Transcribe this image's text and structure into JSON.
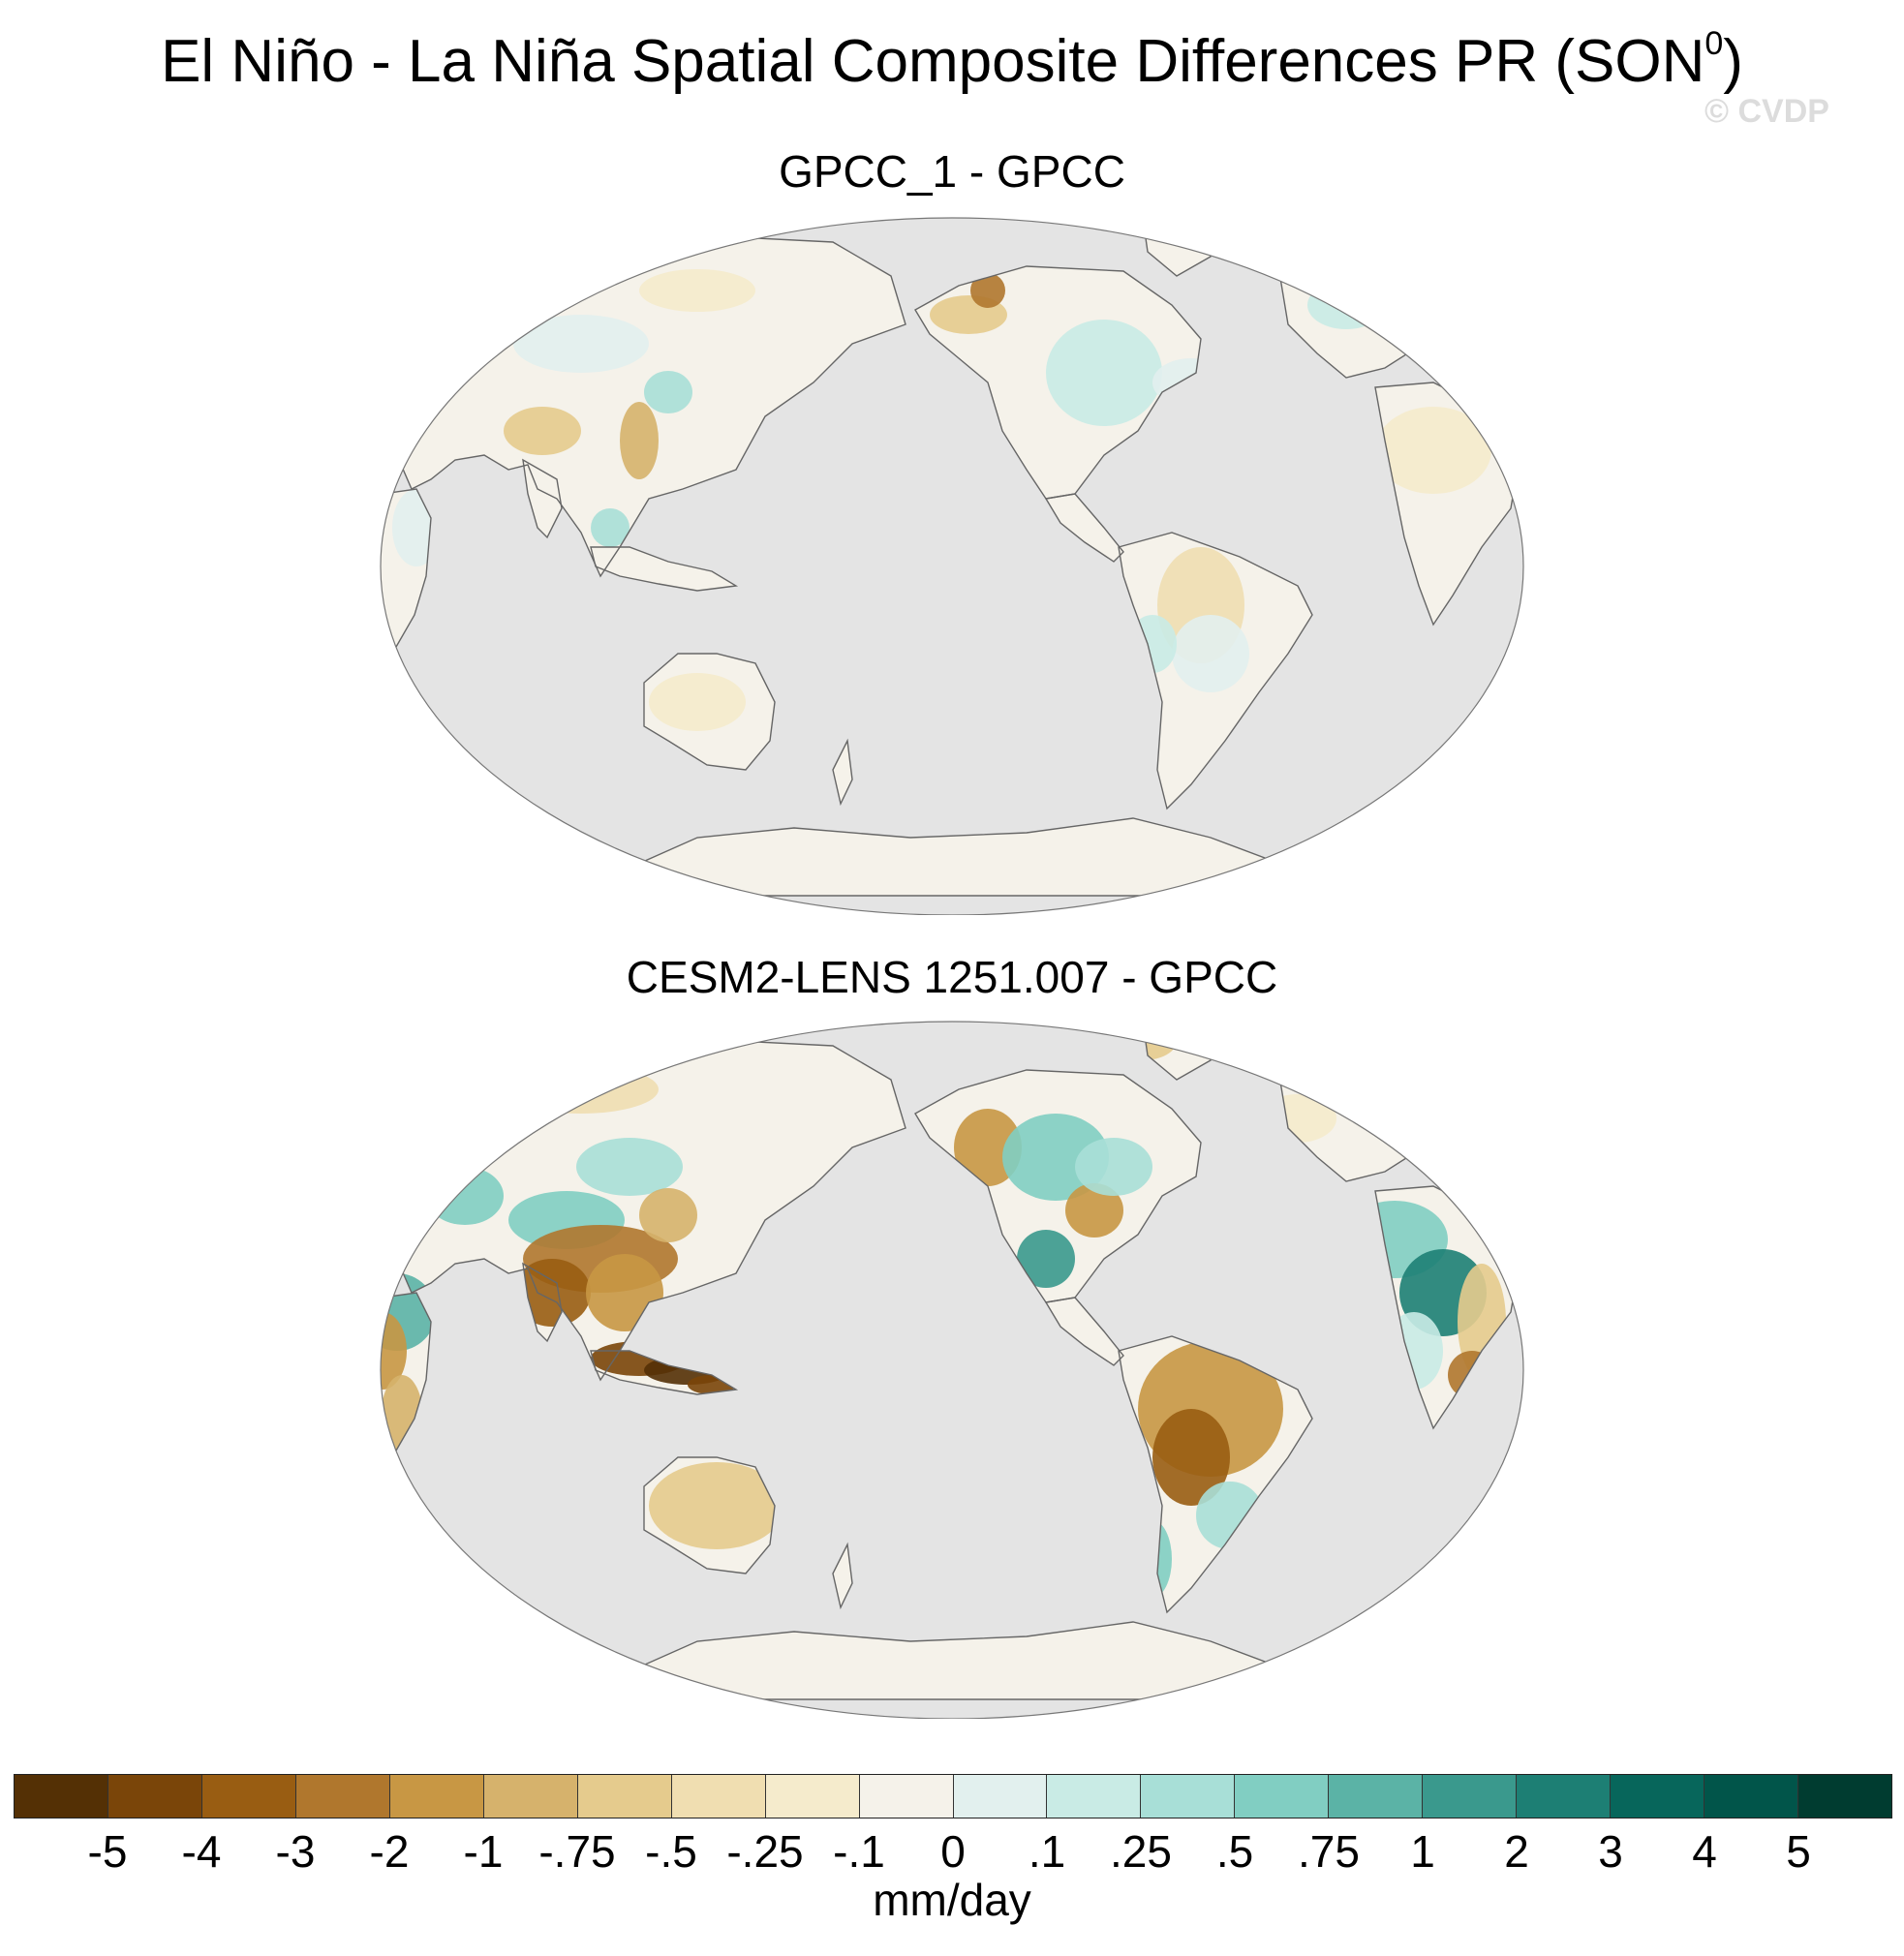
{
  "title": {
    "main": "El Niño - La Niña Spatial Composite Differences PR (SON",
    "superscript": "0",
    "close": ")"
  },
  "watermark": "© CVDP",
  "panels": [
    {
      "title": "GPCC_1 - GPCC"
    },
    {
      "title": "CESM2-LENS 1251.007 - GPCC"
    }
  ],
  "colorbar": {
    "unit": "mm/day",
    "colors": [
      "#543005",
      "#7a4509",
      "#995d12",
      "#b0772d",
      "#c89744",
      "#d6b26c",
      "#e5cb8d",
      "#f0deb1",
      "#f5ebcc",
      "#f5f2ea",
      "#e2f0ee",
      "#c9ebe5",
      "#a8dfd7",
      "#81cec2",
      "#5bb3a6",
      "#3a998d",
      "#1d7f74",
      "#07665b",
      "#01554a",
      "#003c30"
    ],
    "ticks": [
      "-5",
      "-4",
      "-3",
      "-2",
      "-1",
      "-.75",
      "-.5",
      "-.25",
      "-.1",
      "0",
      ".1",
      ".25",
      ".5",
      ".75",
      "1",
      "2",
      "3",
      "4",
      "5"
    ]
  },
  "colors": {
    "ocean": "#e4e4e4",
    "coast": "#666666"
  }
}
